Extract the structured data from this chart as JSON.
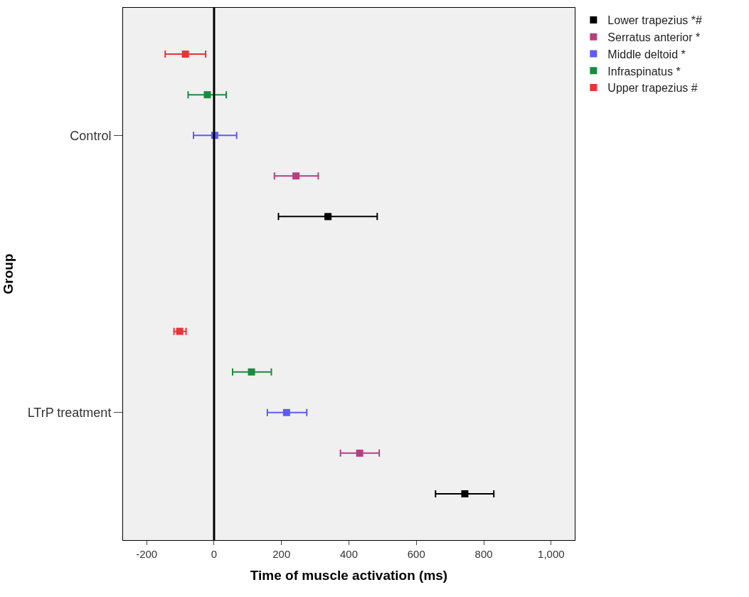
{
  "chart_data": {
    "type": "scatter",
    "orientation": "horizontal",
    "xlabel": "Time of muscle activation (ms)",
    "ylabel": "Group",
    "categories": [
      "Control",
      "LTrP treatment"
    ],
    "series": [
      {
        "name": "Lower trapezius *#",
        "color": "#000000",
        "values": [
          338,
          744
        ],
        "errors": [
          [
            191,
            484
          ],
          [
            657,
            830
          ]
        ]
      },
      {
        "name": "Serratus anterior *",
        "color": "#b5407f",
        "values": [
          243,
          432
        ],
        "errors": [
          [
            179,
            309
          ],
          [
            375,
            490
          ]
        ]
      },
      {
        "name": "Middle deltoid *",
        "color": "#5c5cf5",
        "values": [
          2,
          215
        ],
        "errors": [
          [
            -61,
            67
          ],
          [
            158,
            275
          ]
        ]
      },
      {
        "name": "Infraspinatus *",
        "color": "#1a8a3e",
        "values": [
          -20,
          111
        ],
        "errors": [
          [
            -77,
            36
          ],
          [
            55,
            170
          ]
        ]
      },
      {
        "name": "Upper trapezius #",
        "color": "#e8333a",
        "values": [
          -85,
          -102
        ],
        "errors": [
          [
            -145,
            -25
          ],
          [
            -119,
            -83
          ]
        ]
      }
    ],
    "xlim": [
      -270,
      1070
    ],
    "xticks": [
      -200,
      0,
      200,
      400,
      600,
      800,
      {
        "value": 1000,
        "label": "1,000"
      }
    ],
    "ref_lines": [
      {
        "axis": "x",
        "value": 0,
        "color": "#000000",
        "line_style": "solid"
      }
    ],
    "marker": "square",
    "grid": false,
    "legend": "top right"
  }
}
